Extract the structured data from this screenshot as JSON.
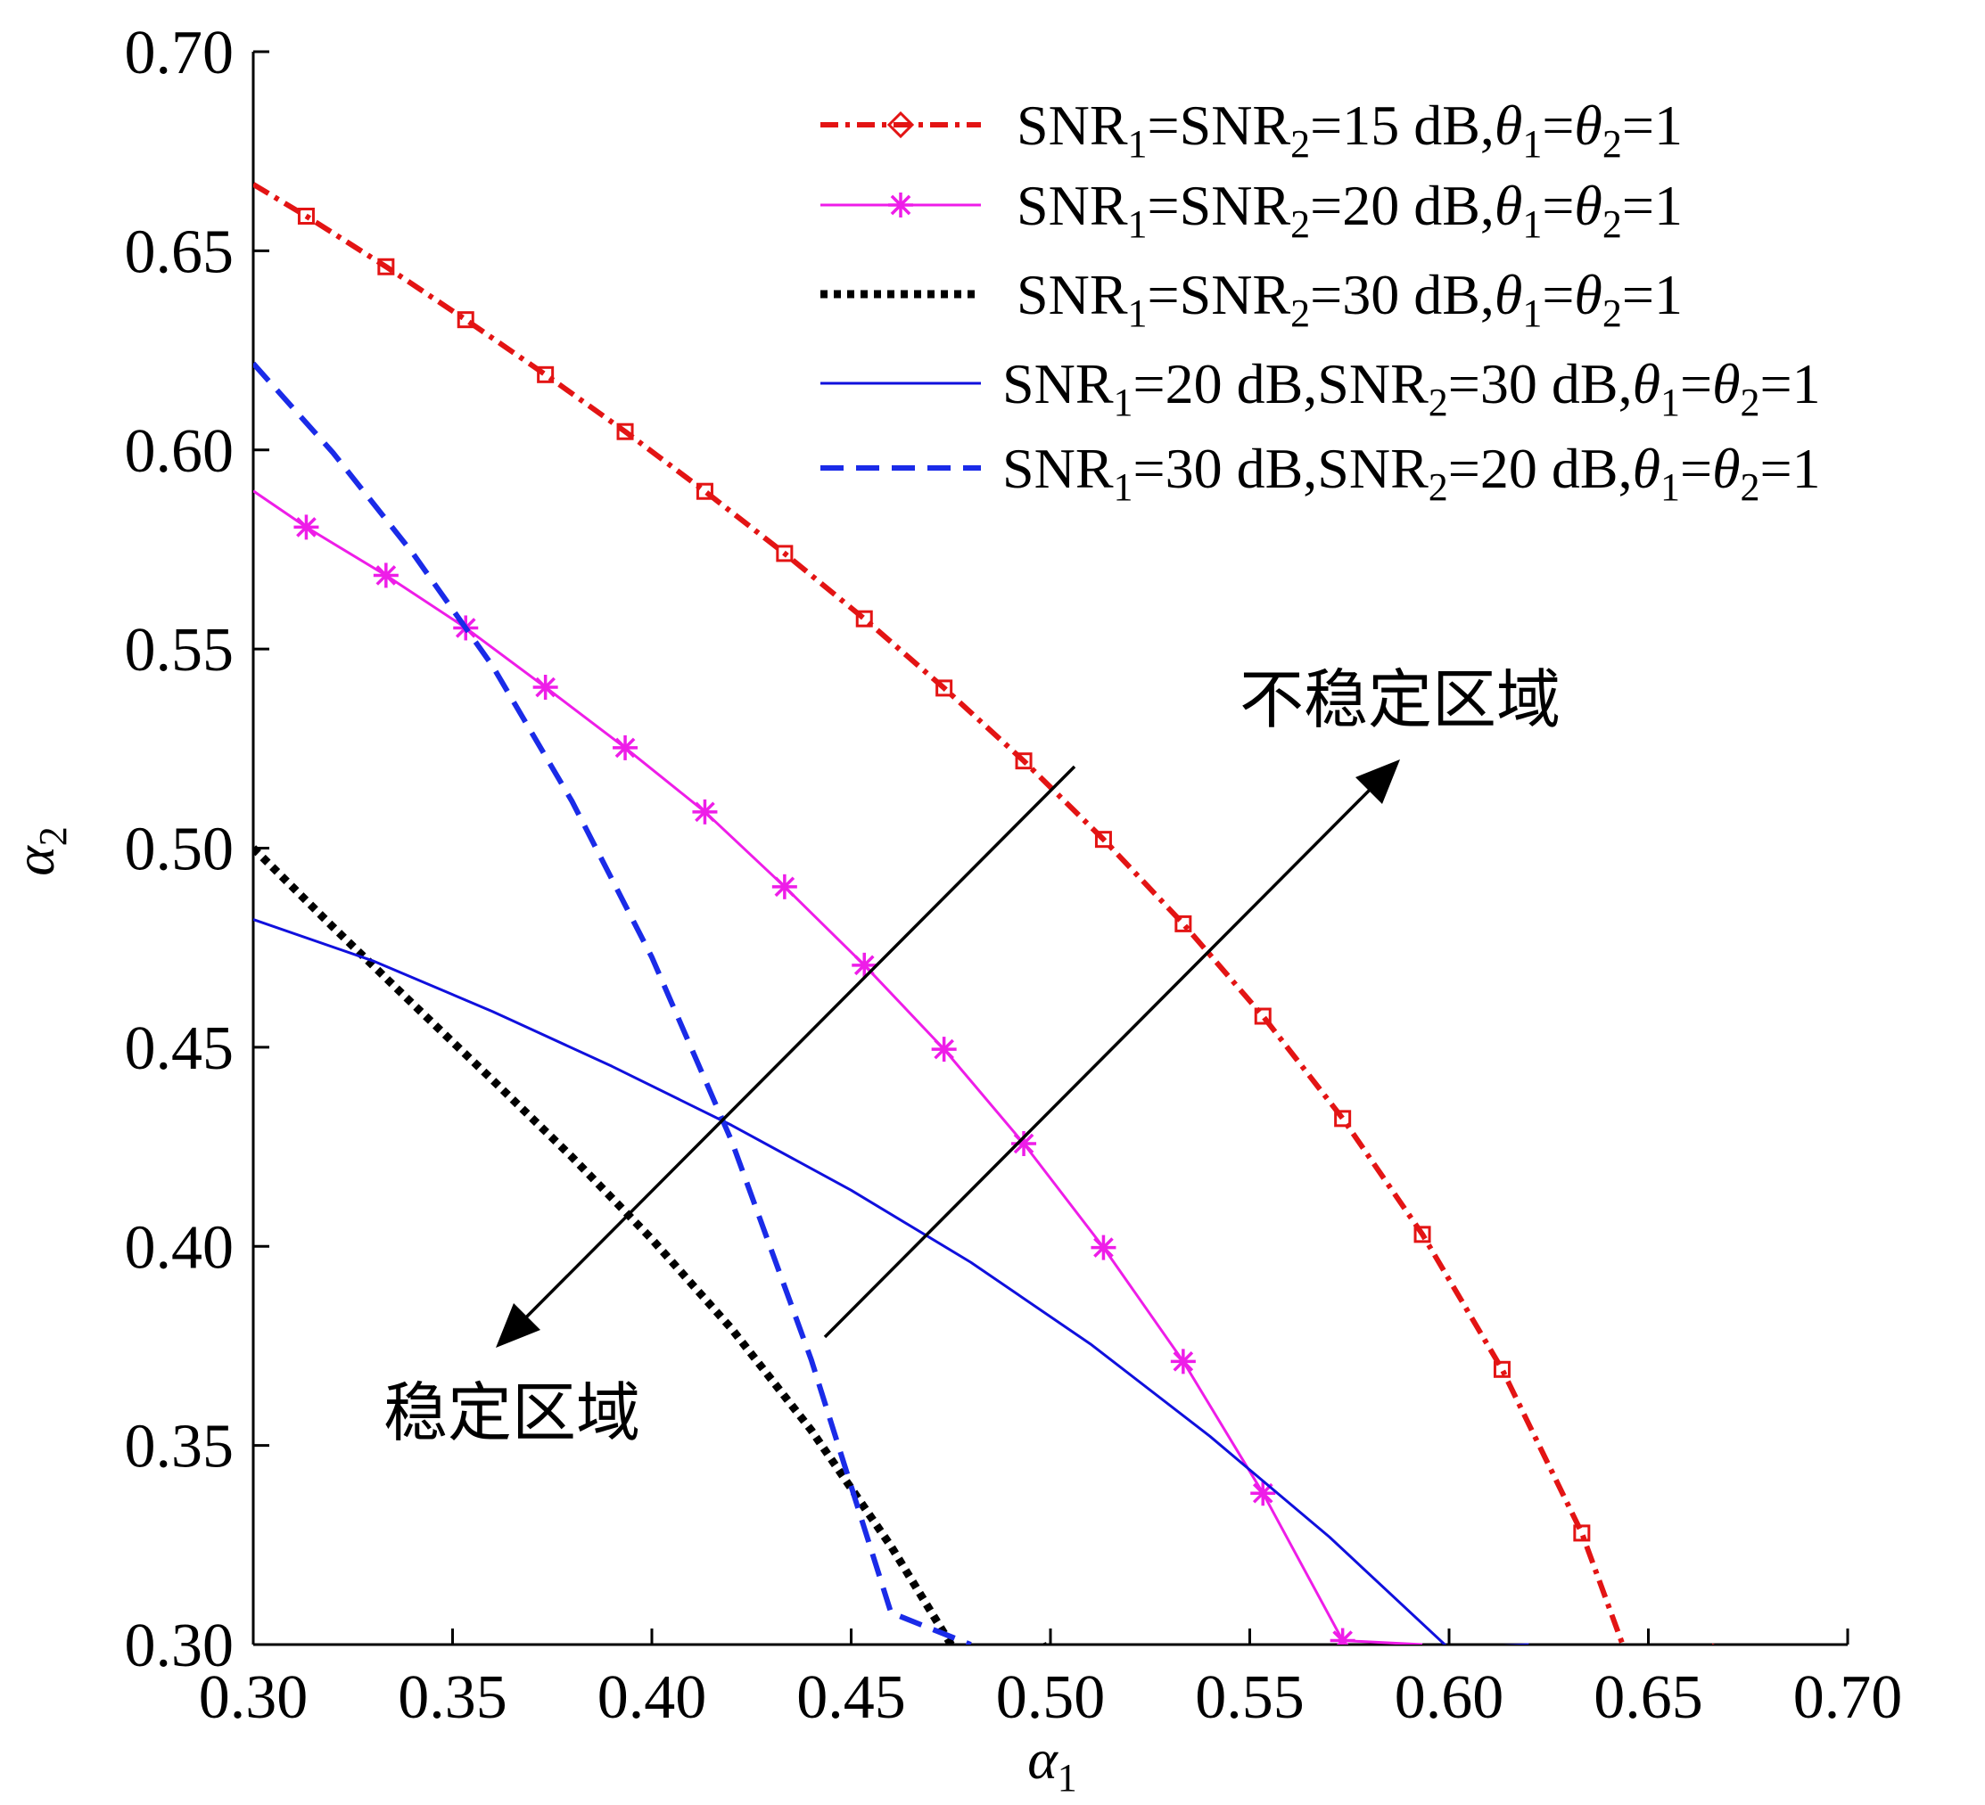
{
  "chart_data": {
    "type": "line",
    "xlabel": {
      "base": "α",
      "sub": "1"
    },
    "ylabel": {
      "base": "α",
      "sub": "2"
    },
    "xlim": [
      0.3,
      0.7
    ],
    "ylim": [
      0.3,
      0.7
    ],
    "xticks": [
      "0.30",
      "0.35",
      "0.40",
      "0.45",
      "0.50",
      "0.55",
      "0.60",
      "0.65",
      "0.70"
    ],
    "yticks": [
      "0.30",
      "0.35",
      "0.40",
      "0.45",
      "0.50",
      "0.55",
      "0.60",
      "0.65",
      "0.70"
    ],
    "grid": false,
    "legend_position": "top-right",
    "series": [
      {
        "name": "SNR1=SNR2=15 dB,θ1=θ2=1",
        "legend_parts": [
          [
            "SNR",
            ""
          ],
          [
            "1",
            "sub"
          ],
          [
            "=SNR",
            ""
          ],
          [
            "2",
            "sub"
          ],
          [
            "=15 dB,",
            ""
          ],
          [
            "θ",
            "it"
          ],
          [
            "1",
            "sub"
          ],
          [
            "=",
            ""
          ],
          [
            "θ",
            "it"
          ],
          [
            "2",
            "sub"
          ],
          [
            "=1",
            ""
          ]
        ],
        "color": "#e31414",
        "style": "dashdot",
        "marker": "square",
        "legend_marker": "diamond",
        "x": [
          0.3,
          0.3133,
          0.3333,
          0.3533,
          0.3733,
          0.3933,
          0.4133,
          0.4333,
          0.4533,
          0.4733,
          0.4933,
          0.5133,
          0.5333,
          0.5533,
          0.5733,
          0.5933,
          0.6133,
          0.6333,
          0.6533,
          0.6667
        ],
        "y": [
          0.6667,
          0.6587,
          0.646,
          0.6327,
          0.6189,
          0.6046,
          0.5896,
          0.574,
          0.5576,
          0.5402,
          0.5219,
          0.5022,
          0.481,
          0.4578,
          0.4321,
          0.403,
          0.3691,
          0.328,
          0.2733,
          0.3
        ]
      },
      {
        "name": "SNR1=SNR2=20 dB,θ1=θ2=1",
        "legend_parts": [
          [
            "SNR",
            ""
          ],
          [
            "1",
            "sub"
          ],
          [
            "=SNR",
            ""
          ],
          [
            "2",
            "sub"
          ],
          [
            "=20 dB,",
            ""
          ],
          [
            "θ",
            "it"
          ],
          [
            "1",
            "sub"
          ],
          [
            "=",
            ""
          ],
          [
            "θ",
            "it"
          ],
          [
            "2",
            "sub"
          ],
          [
            "=1",
            ""
          ]
        ],
        "color": "#ee1de8",
        "style": "solid",
        "marker": "asterisk",
        "legend_marker": "asterisk",
        "x": [
          0.3,
          0.3133,
          0.3333,
          0.3533,
          0.3733,
          0.3933,
          0.4133,
          0.4333,
          0.4533,
          0.4733,
          0.4933,
          0.5133,
          0.5333,
          0.5533,
          0.5733,
          0.5933
        ],
        "y": [
          0.5897,
          0.5806,
          0.5685,
          0.5553,
          0.5404,
          0.5252,
          0.5091,
          0.4903,
          0.4706,
          0.4495,
          0.4258,
          0.3997,
          0.3711,
          0.338,
          0.301,
          0.3
        ]
      },
      {
        "name": "SNR1=SNR2=30 dB,θ1=θ2=1",
        "legend_parts": [
          [
            "SNR",
            ""
          ],
          [
            "1",
            "sub"
          ],
          [
            "=SNR",
            ""
          ],
          [
            "2",
            "sub"
          ],
          [
            "=30 dB,",
            ""
          ],
          [
            "θ",
            "it"
          ],
          [
            "1",
            "sub"
          ],
          [
            "=",
            ""
          ],
          [
            "θ",
            "it"
          ],
          [
            "2",
            "sub"
          ],
          [
            "=1",
            ""
          ]
        ],
        "color": "#000000",
        "style": "dotted",
        "marker": "none",
        "legend_marker": "none",
        "x": [
          0.3,
          0.32,
          0.34,
          0.36,
          0.38,
          0.4,
          0.42,
          0.44,
          0.46,
          0.48,
          0.5
        ],
        "y": [
          0.5,
          0.4802,
          0.4609,
          0.4418,
          0.4224,
          0.4018,
          0.3793,
          0.3538,
          0.3247,
          0.2919,
          0.3
        ]
      },
      {
        "name": "SNR1=20 dB,SNR2=30 dB,θ1=θ2=1",
        "legend_parts": [
          [
            "SNR",
            ""
          ],
          [
            "1",
            "sub"
          ],
          [
            "=20 dB,SNR",
            ""
          ],
          [
            "2",
            "sub"
          ],
          [
            "=30 dB,",
            ""
          ],
          [
            "θ",
            "it"
          ],
          [
            "1",
            "sub"
          ],
          [
            "=",
            ""
          ],
          [
            "θ",
            "it"
          ],
          [
            "2",
            "sub"
          ],
          [
            "=1",
            ""
          ]
        ],
        "color": "#1010dd",
        "style": "solid-thin",
        "marker": "none",
        "legend_marker": "none",
        "x": [
          0.3,
          0.33,
          0.36,
          0.39,
          0.42,
          0.45,
          0.48,
          0.51,
          0.54,
          0.57,
          0.6,
          0.62
        ],
        "y": [
          0.4821,
          0.4717,
          0.459,
          0.4452,
          0.4304,
          0.4141,
          0.396,
          0.3755,
          0.3523,
          0.327,
          0.299,
          0.3
        ]
      },
      {
        "name": "SNR1=30 dB,SNR2=20 dB,θ1=θ2=1",
        "legend_parts": [
          [
            "SNR",
            ""
          ],
          [
            "1",
            "sub"
          ],
          [
            "=30 dB,SNR",
            ""
          ],
          [
            "2",
            "sub"
          ],
          [
            "=20 dB,",
            ""
          ],
          [
            "θ",
            "it"
          ],
          [
            "1",
            "sub"
          ],
          [
            "=",
            ""
          ],
          [
            "θ",
            "it"
          ],
          [
            "2",
            "sub"
          ],
          [
            "=1",
            ""
          ]
        ],
        "color": "#1a2be8",
        "style": "dashed",
        "marker": "none",
        "legend_marker": "none",
        "x": [
          0.3,
          0.32,
          0.34,
          0.36,
          0.38,
          0.4,
          0.42,
          0.44,
          0.46,
          0.48
        ],
        "y": [
          0.6217,
          0.5993,
          0.5741,
          0.5458,
          0.5117,
          0.4726,
          0.4265,
          0.3715,
          0.308,
          0.3
        ]
      }
    ],
    "annotations": {
      "unstable_region": "不稳定区域",
      "stable_region": "稳定区域"
    }
  }
}
